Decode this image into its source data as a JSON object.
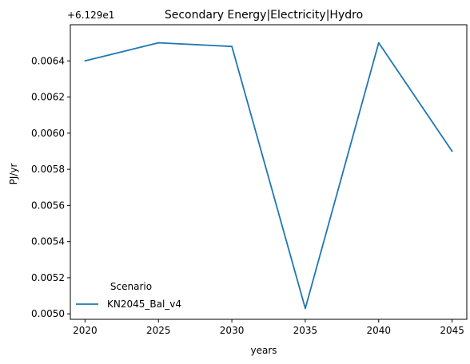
{
  "chart_data": {
    "type": "line",
    "title": "Secondary Energy|Electricity|Hydro",
    "xlabel": "years",
    "ylabel": "PJ/yr",
    "offset_label": "+6.129e1",
    "x": [
      2020,
      2025,
      2030,
      2035,
      2040,
      2045
    ],
    "xticks": [
      "2020",
      "2025",
      "2030",
      "2035",
      "2040",
      "2045"
    ],
    "yticks": [
      "0.0050",
      "0.0052",
      "0.0054",
      "0.0056",
      "0.0058",
      "0.0060",
      "0.0062",
      "0.0064"
    ],
    "ytick_values": [
      0.005,
      0.0052,
      0.0054,
      0.0056,
      0.0058,
      0.006,
      0.0062,
      0.0064
    ],
    "xlim": [
      2019,
      2046
    ],
    "ylim": [
      0.00497,
      0.0066
    ],
    "grid": false,
    "legend": {
      "title": "Scenario",
      "placement": "lower-left"
    },
    "series": [
      {
        "name": "KN2045_Bal_v4",
        "color": "#1f77b4",
        "values": [
          0.0064,
          0.0065,
          0.00648,
          0.00503,
          0.0065,
          0.0059
        ]
      }
    ]
  }
}
